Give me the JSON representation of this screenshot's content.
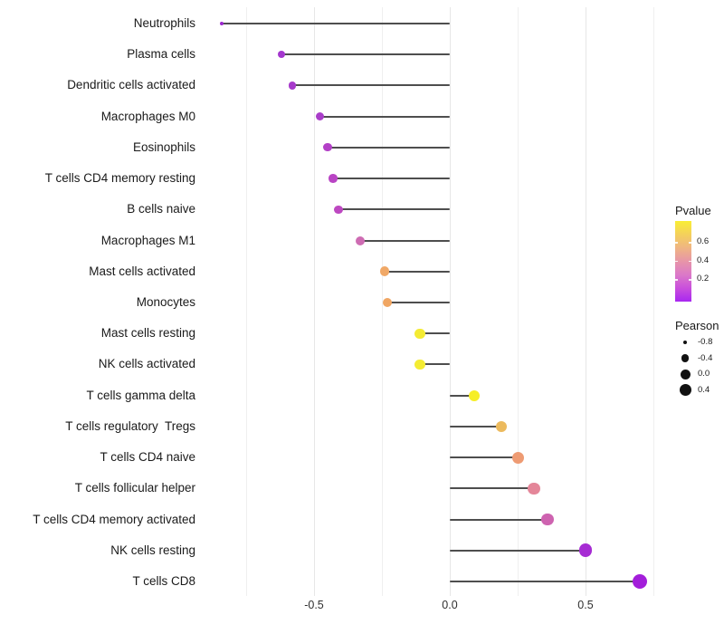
{
  "chart_data": {
    "type": "lollipop",
    "orientation": "horizontal",
    "title": "",
    "xlabel": "",
    "ylabel": "",
    "x_ticks": [
      {
        "label": "-0.5",
        "value": -0.5
      },
      {
        "label": "0.0",
        "value": 0.0
      },
      {
        "label": "0.5",
        "value": 0.5
      }
    ],
    "gridline_values": [
      -0.75,
      -0.5,
      -0.25,
      0.0,
      0.25,
      0.5,
      0.75
    ],
    "xlim": [
      -0.92,
      0.8
    ],
    "grid": "on",
    "stem_color": "#4e4e4e",
    "categories": [
      "Neutrophils",
      "Plasma cells",
      "Dendritic cells activated",
      "Macrophages M0",
      "Eosinophils",
      "T cells CD4 memory resting",
      "B cells naive",
      "Macrophages M1",
      "Mast cells activated",
      "Monocytes",
      "Mast cells resting",
      "NK cells activated",
      "T cells gamma delta",
      "T cells regulatory  Tregs",
      "T cells CD4 naive",
      "T cells follicular helper",
      "T cells CD4 memory activated",
      "NK cells resting",
      "T cells CD8"
    ],
    "points": [
      {
        "label": "Neutrophils",
        "pearson": -0.84,
        "color": "#9B27CE",
        "size": 4.0
      },
      {
        "label": "Plasma cells",
        "pearson": -0.62,
        "color": "#A437CE",
        "size": 8.0
      },
      {
        "label": "Dendritic cells activated",
        "pearson": -0.58,
        "color": "#A73ACB",
        "size": 8.4
      },
      {
        "label": "Macrophages M0",
        "pearson": -0.48,
        "color": "#A93DC9",
        "size": 9.0
      },
      {
        "label": "Eosinophils",
        "pearson": -0.45,
        "color": "#B340C7",
        "size": 9.2
      },
      {
        "label": "T cells CD4 memory resting",
        "pearson": -0.43,
        "color": "#B944C4",
        "size": 9.4
      },
      {
        "label": "B cells naive",
        "pearson": -0.41,
        "color": "#BD48C1",
        "size": 9.6
      },
      {
        "label": "Macrophages M1",
        "pearson": -0.33,
        "color": "#CE6CB3",
        "size": 10.0
      },
      {
        "label": "Mast cells activated",
        "pearson": -0.24,
        "color": "#F0A867",
        "size": 10.6
      },
      {
        "label": "Monocytes",
        "pearson": -0.23,
        "color": "#F0A663",
        "size": 10.6
      },
      {
        "label": "Mast cells resting",
        "pearson": -0.11,
        "color": "#F4EB33",
        "size": 11.2
      },
      {
        "label": "NK cells activated",
        "pearson": -0.11,
        "color": "#F4EC33",
        "size": 11.2
      },
      {
        "label": "T cells gamma delta",
        "pearson": 0.09,
        "color": "#F6EE26",
        "size": 12.0
      },
      {
        "label": "T cells regulatory  Tregs",
        "pearson": 0.19,
        "color": "#ECBA5D",
        "size": 12.6
      },
      {
        "label": "T cells CD4 naive",
        "pearson": 0.25,
        "color": "#EE9B73",
        "size": 13.0
      },
      {
        "label": "T cells follicular helper",
        "pearson": 0.31,
        "color": "#E48699",
        "size": 13.4
      },
      {
        "label": "T cells CD4 memory activated",
        "pearson": 0.36,
        "color": "#CE63B0",
        "size": 13.8
      },
      {
        "label": "NK cells resting",
        "pearson": 0.5,
        "color": "#A62BD3",
        "size": 14.8
      },
      {
        "label": "T cells CD8",
        "pearson": 0.7,
        "color": "#A31EDA",
        "size": 16.4
      }
    ],
    "legend_pvalue": {
      "title": "Pvalue",
      "tick_labels": [
        "0.6",
        "0.4",
        "0.2"
      ],
      "gradient_bottom_to_top": [
        "#A827F0",
        "#C94FDC",
        "#DB79C8",
        "#E795A8",
        "#EFB583",
        "#F4D05C",
        "#F9EE35"
      ]
    },
    "legend_pearson": {
      "title": "Pearson",
      "dot_color": "#111111",
      "items": [
        {
          "label": "-0.8",
          "size": 4.3
        },
        {
          "label": "-0.4",
          "size": 8.3
        },
        {
          "label": "0.0",
          "size": 11.0
        },
        {
          "label": "0.4",
          "size": 13.0
        }
      ]
    }
  }
}
